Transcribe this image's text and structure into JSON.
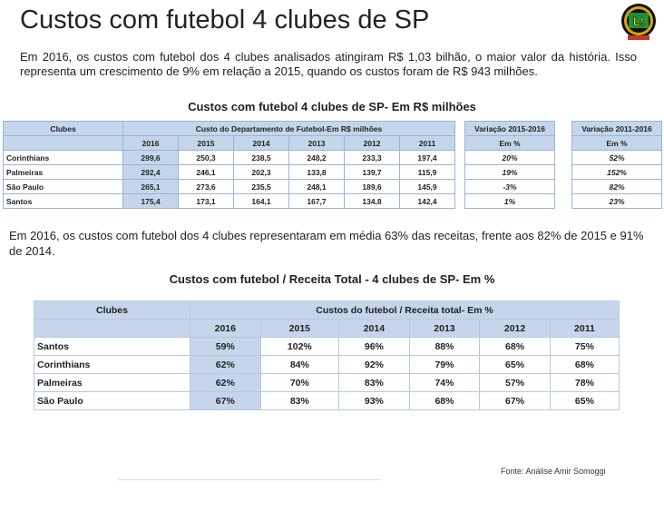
{
  "title": "Custos com futebol 4 clubes de SP",
  "intro": "Em 2016, os custos com futebol dos 4 clubes analisados atingiram R$ 1,03 bilhão, o maior valor da história. Isso representa um crescimento de 9% em relação a 2015, quando os custos foram de R$ 943 milhões.",
  "table1": {
    "title": "Custos com futebol 4 clubes de SP- Em R$ milhões",
    "clubs_header": "Clubes",
    "group_header": "Custo do Departamento de Futebol-Em R$ milhões",
    "var1_header": "Variação 2015-2016",
    "var2_header": "Variação 2011-2016",
    "unit": "Em %",
    "years": [
      "2016",
      "2015",
      "2014",
      "2013",
      "2012",
      "2011"
    ],
    "rows": [
      {
        "club": "Corinthians",
        "values": [
          "299,6",
          "250,3",
          "238,5",
          "248,2",
          "233,3",
          "197,4"
        ],
        "var1": "20%",
        "var2": "52%"
      },
      {
        "club": "Palmeiras",
        "values": [
          "292,4",
          "246,1",
          "202,3",
          "133,8",
          "139,7",
          "115,9"
        ],
        "var1": "19%",
        "var2": "152%"
      },
      {
        "club": "São Paulo",
        "values": [
          "265,1",
          "273,6",
          "235,5",
          "248,1",
          "189,6",
          "145,9"
        ],
        "var1": "-3%",
        "var2": "82%"
      },
      {
        "club": "Santos",
        "values": [
          "175,4",
          "173,1",
          "164,1",
          "167,7",
          "134,8",
          "142,4"
        ],
        "var1": "1%",
        "var2": "23%"
      }
    ]
  },
  "mid_text": "Em 2016, os custos com futebol dos 4 clubes representaram em média 63% das receitas, frente aos 82% de 2015 e 91% de 2014.",
  "table2": {
    "title": "Custos com futebol  / Receita Total - 4 clubes de SP- Em %",
    "clubs_header": "Clubes",
    "group_header": "Custos do futebol / Receita total- Em %",
    "years": [
      "2016",
      "2015",
      "2014",
      "2013",
      "2012",
      "2011"
    ],
    "rows": [
      {
        "club": "Santos",
        "values": [
          "59%",
          "102%",
          "96%",
          "88%",
          "68%",
          "75%"
        ]
      },
      {
        "club": "Corinthians",
        "values": [
          "62%",
          "84%",
          "92%",
          "79%",
          "65%",
          "68%"
        ]
      },
      {
        "club": "Palmeiras",
        "values": [
          "62%",
          "70%",
          "83%",
          "74%",
          "57%",
          "78%"
        ]
      },
      {
        "club": "São Paulo",
        "values": [
          "67%",
          "83%",
          "93%",
          "68%",
          "67%",
          "65%"
        ]
      }
    ]
  },
  "source": "Fonte: Análise Amir Somoggi",
  "logo": {
    "icon": "lance-logo-icon",
    "text": "L!",
    "colors": {
      "ring": "#d9a514",
      "field": "#1f8f3a",
      "dark": "#111111"
    }
  }
}
